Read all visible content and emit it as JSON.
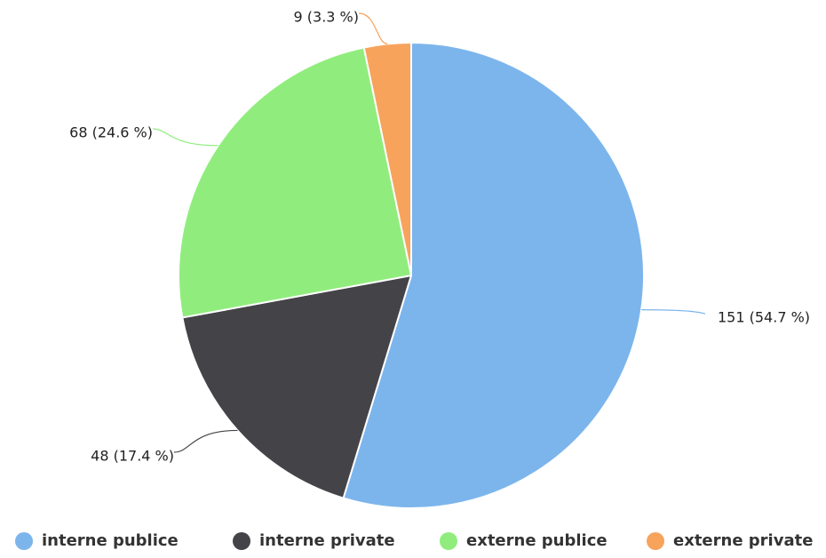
{
  "chart_data": {
    "type": "pie",
    "title": "",
    "start_angle_deg": 0,
    "direction": "clockwise",
    "legend_position": "bottom",
    "slices": [
      {
        "name": "interne publice",
        "value": 151,
        "percent_label": "151 (54.7 %)",
        "color": "#7cb5ec"
      },
      {
        "name": "interne private",
        "value": 48,
        "percent_label": "48 (17.4 %)",
        "color": "#434348"
      },
      {
        "name": "externe publice",
        "value": 68,
        "percent_label": "68 (24.6 %)",
        "color": "#90ed7d"
      },
      {
        "name": "externe private",
        "value": 9,
        "percent_label": "9 (3.3 %)",
        "color": "#f7a35c"
      }
    ]
  }
}
